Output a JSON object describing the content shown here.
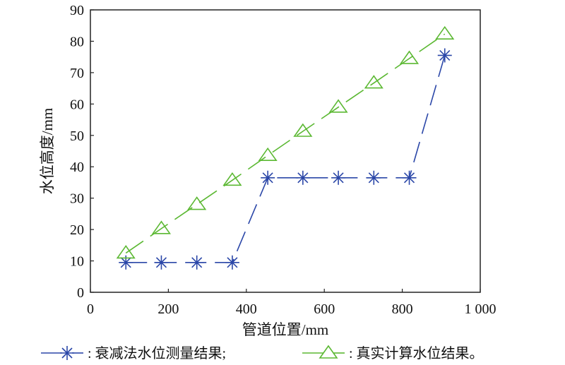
{
  "chart_data": {
    "type": "line",
    "title": "",
    "xlabel": "管道位置/mm",
    "ylabel": "水位高度/mm",
    "xlim": [
      0,
      1000
    ],
    "ylim": [
      0,
      90
    ],
    "xticks": [
      0,
      200,
      400,
      600,
      800,
      1000
    ],
    "xtick_labels": [
      "0",
      "200",
      "400",
      "600",
      "800",
      "1 000"
    ],
    "yticks": [
      0,
      10,
      20,
      30,
      40,
      50,
      60,
      70,
      80,
      90
    ],
    "ytick_labels": [
      "0",
      "10",
      "20",
      "30",
      "40",
      "50",
      "60",
      "70",
      "80",
      "90"
    ],
    "grid": false,
    "legend_position": "bottom",
    "series": [
      {
        "name": "衰减法水位测量结果;",
        "marker": "asterisk",
        "color": "#2b47a8",
        "x": [
          91,
          182,
          273,
          364,
          455,
          545,
          636,
          727,
          818,
          909
        ],
        "y": [
          9.5,
          9.5,
          9.5,
          9.5,
          36.5,
          36.5,
          36.5,
          36.5,
          36.5,
          75.5
        ]
      },
      {
        "name": "真实计算水位结果。",
        "marker": "triangle",
        "color": "#5bb832",
        "x": [
          91,
          182,
          273,
          364,
          455,
          545,
          636,
          727,
          818,
          909
        ],
        "y": [
          12.5,
          20.3,
          28,
          35.7,
          43.6,
          51.3,
          59,
          66.7,
          74.5,
          82.3
        ]
      }
    ]
  }
}
